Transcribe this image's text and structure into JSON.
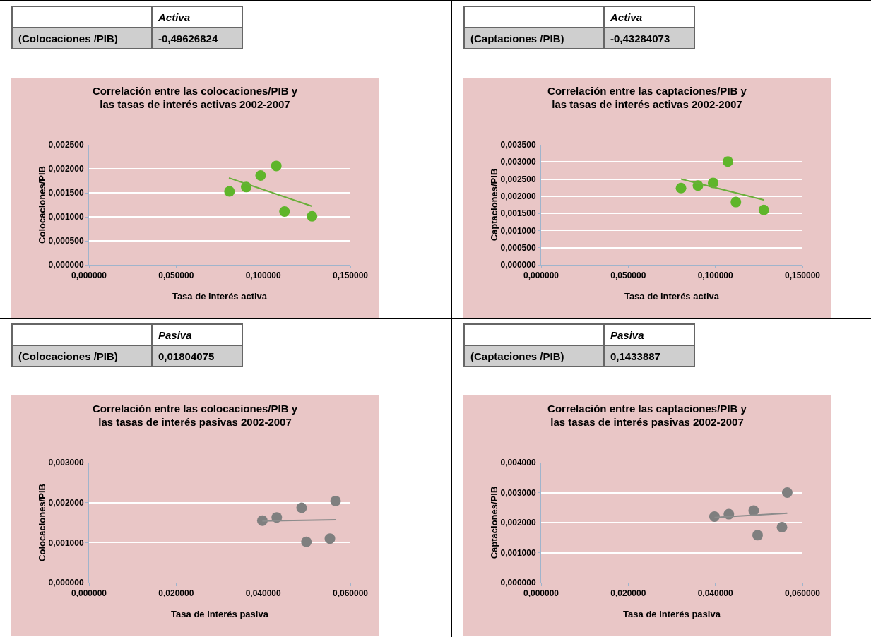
{
  "chart_data": [
    {
      "type": "scatter",
      "title": "Correlación entre las colocaciones/PIB y las tasas de interés activas 2002-2007",
      "xlabel": "Tasa de interés activa",
      "ylabel": "Colocaciones/PIB",
      "annotations": [
        "Activa",
        "(Colocaciones /PIB)",
        "-0,49626824"
      ],
      "grid": "y",
      "xlim": [
        0,
        0.15
      ],
      "xticks": [
        {
          "value": 0,
          "label": "0,000000"
        },
        {
          "value": 0.05,
          "label": "0,050000"
        },
        {
          "value": 0.1,
          "label": "0,100000"
        },
        {
          "value": 0.15,
          "label": "0,150000"
        }
      ],
      "ylim": [
        0,
        0.0025
      ],
      "yticks": [
        {
          "value": 0,
          "label": "0,000000"
        },
        {
          "value": 0.0005,
          "label": "0,000500"
        },
        {
          "value": 0.001,
          "label": "0,001000"
        },
        {
          "value": 0.0015,
          "label": "0,001500"
        },
        {
          "value": 0.002,
          "label": "0,002000"
        },
        {
          "value": 0.0025,
          "label": "0,002500"
        }
      ],
      "series": [
        {
          "marker": "circle",
          "color": "#5fb52a",
          "x": [
            0.0806,
            0.0902,
            0.0985,
            0.1075,
            0.1122,
            0.128
          ],
          "values": [
            0.00153,
            0.00162,
            0.00186,
            0.00206,
            0.00111,
            0.00101
          ]
        },
        {
          "type": "line",
          "marker": "none",
          "color": "#6aaf3a",
          "x": [
            0.0803,
            0.128
          ],
          "values": [
            0.00181,
            0.00122
          ]
        }
      ]
    },
    {
      "type": "scatter",
      "title": "Correlación entre las captaciones/PIB y las tasas de interés activas 2002-2007",
      "xlabel": "Tasa de interés activa",
      "ylabel": "Captaciones/PIB",
      "annotations": [
        "Activa",
        "(Captaciones /PIB)",
        "-0,43284073"
      ],
      "grid": "y",
      "xlim": [
        0,
        0.15
      ],
      "xticks": [
        {
          "value": 0,
          "label": "0,000000"
        },
        {
          "value": 0.05,
          "label": "0,050000"
        },
        {
          "value": 0.1,
          "label": "0,100000"
        },
        {
          "value": 0.15,
          "label": "0,150000"
        }
      ],
      "ylim": [
        0,
        0.0035
      ],
      "yticks": [
        {
          "value": 0,
          "label": "0,000000"
        },
        {
          "value": 0.0005,
          "label": "0,000500"
        },
        {
          "value": 0.001,
          "label": "0,001000"
        },
        {
          "value": 0.0015,
          "label": "0,001500"
        },
        {
          "value": 0.002,
          "label": "0,002000"
        },
        {
          "value": 0.0025,
          "label": "0,002500"
        },
        {
          "value": 0.003,
          "label": "0,003000"
        },
        {
          "value": 0.0035,
          "label": "0,003500"
        }
      ],
      "series": [
        {
          "marker": "circle",
          "color": "#5fb52a",
          "x": [
            0.0803,
            0.09,
            0.0987,
            0.1072,
            0.1118,
            0.1278
          ],
          "values": [
            0.00224,
            0.00231,
            0.00239,
            0.00301,
            0.00183,
            0.0016
          ]
        },
        {
          "type": "line",
          "marker": "none",
          "color": "#6aaf3a",
          "x": [
            0.0803,
            0.128
          ],
          "values": [
            0.0025,
            0.00189
          ]
        }
      ]
    },
    {
      "type": "scatter",
      "title": "Correlación entre las colocaciones/PIB y las tasas de interés pasivas 2002-2007",
      "xlabel": "Tasa de interés pasiva",
      "ylabel": "Colocaciones/PIB",
      "annotations": [
        "Pasiva",
        "(Colocaciones /PIB)",
        "0,01804075"
      ],
      "grid": "y",
      "xlim": [
        0,
        0.06
      ],
      "xticks": [
        {
          "value": 0,
          "label": "0,000000"
        },
        {
          "value": 0.02,
          "label": "0,020000"
        },
        {
          "value": 0.04,
          "label": "0,040000"
        },
        {
          "value": 0.06,
          "label": "0,060000"
        }
      ],
      "ylim": [
        0,
        0.003
      ],
      "yticks": [
        {
          "value": 0,
          "label": "0,000000"
        },
        {
          "value": 0.001,
          "label": "0,001000"
        },
        {
          "value": 0.002,
          "label": "0,002000"
        },
        {
          "value": 0.003,
          "label": "0,003000"
        }
      ],
      "series": [
        {
          "marker": "circle",
          "color": "#7f7f7f",
          "x": [
            0.0398,
            0.0431,
            0.0488,
            0.0499,
            0.0553,
            0.0566
          ],
          "values": [
            0.00155,
            0.00163,
            0.00187,
            0.00102,
            0.0011,
            0.00204
          ]
        },
        {
          "type": "line",
          "marker": "none",
          "color": "#8c8c8c",
          "x": [
            0.0398,
            0.0566
          ],
          "values": [
            0.00154,
            0.00157
          ]
        }
      ]
    },
    {
      "type": "scatter",
      "title": "Correlación entre las captaciones/PIB y las tasas de interés pasivas 2002-2007",
      "xlabel": "Tasa de interés pasiva",
      "ylabel": "Captaciones/PIB",
      "annotations": [
        "Pasiva",
        "(Captaciones /PIB)",
        "0,1433887"
      ],
      "grid": "y",
      "xlim": [
        0,
        0.06
      ],
      "xticks": [
        {
          "value": 0,
          "label": "0,000000"
        },
        {
          "value": 0.02,
          "label": "0,020000"
        },
        {
          "value": 0.04,
          "label": "0,040000"
        },
        {
          "value": 0.06,
          "label": "0,060000"
        }
      ],
      "ylim": [
        0,
        0.004
      ],
      "yticks": [
        {
          "value": 0,
          "label": "0,000000"
        },
        {
          "value": 0.001,
          "label": "0,001000"
        },
        {
          "value": 0.002,
          "label": "0,002000"
        },
        {
          "value": 0.003,
          "label": "0,003000"
        },
        {
          "value": 0.004,
          "label": "0,004000"
        }
      ],
      "series": [
        {
          "marker": "circle",
          "color": "#7f7f7f",
          "x": [
            0.0398,
            0.0431,
            0.0488,
            0.0497,
            0.0553,
            0.0565
          ],
          "values": [
            0.0022,
            0.00228,
            0.0024,
            0.00158,
            0.00185,
            0.003
          ]
        },
        {
          "type": "line",
          "marker": "none",
          "color": "#8c8c8c",
          "x": [
            0.0398,
            0.0565
          ],
          "values": [
            0.00217,
            0.00231
          ]
        }
      ]
    }
  ]
}
